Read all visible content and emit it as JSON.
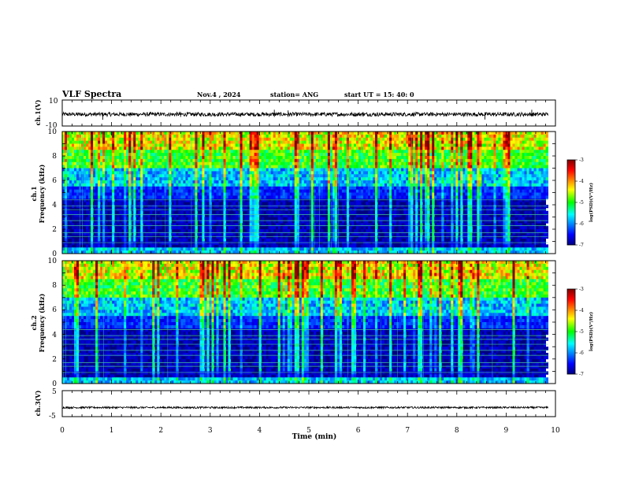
{
  "header": {
    "title": "VLF Spectra",
    "date": "Nov.4 , 2024",
    "station": "station= ANG",
    "start": "start UT = 15: 40: 0"
  },
  "chart_data": [
    {
      "type": "line",
      "ylabel": "ch.1(V)",
      "ylim": [
        -10,
        10
      ],
      "yticks": [
        "10",
        "-10"
      ],
      "baseline": -1,
      "series": [
        {
          "values_description_free": true
        }
      ]
    },
    {
      "type": "heatmap",
      "ylabel_line1": "ch.1",
      "ylabel_line2": "Frequency (kHz)",
      "ylim": [
        0,
        10
      ],
      "yticks": [
        "0",
        "2",
        "4",
        "6",
        "8",
        "10"
      ],
      "xlim": [
        0,
        9.85
      ],
      "colorbar": {
        "range": [
          -7,
          -3
        ],
        "ticks": [
          "-3",
          "-4",
          "-5",
          "-6",
          "-7"
        ],
        "label": "log(PSD)(V²/Hz)"
      }
    },
    {
      "type": "heatmap",
      "ylabel_line1": "ch.2",
      "ylabel_line2": "Frequency (kHz)",
      "ylim": [
        0,
        10
      ],
      "yticks": [
        "0",
        "2",
        "4",
        "6",
        "8",
        "10"
      ],
      "xlim": [
        0,
        9.85
      ],
      "colorbar": {
        "range": [
          -7,
          -3
        ],
        "ticks": [
          "-3",
          "-4",
          "-5",
          "-6",
          "-7"
        ],
        "label": "log(PSD)(V²/Hz)"
      }
    },
    {
      "type": "line",
      "ylabel": "ch.3(V)",
      "ylim": [
        -5,
        5
      ],
      "yticks": [
        "5",
        "-5"
      ],
      "baseline": -1.5
    }
  ],
  "xaxis": {
    "label": "Time (min)",
    "ticks": [
      "0",
      "1",
      "2",
      "3",
      "4",
      "5",
      "6",
      "7",
      "8",
      "9",
      "10"
    ],
    "range": [
      0,
      10
    ]
  },
  "colors": {
    "colormap": [
      "#00007f",
      "#0000ff",
      "#00ffff",
      "#00ff00",
      "#ffff00",
      "#ff0000",
      "#7f0000"
    ]
  }
}
